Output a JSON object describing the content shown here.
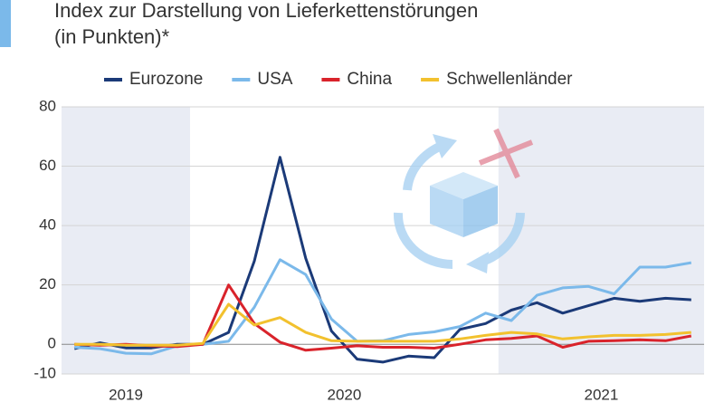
{
  "chart_data": {
    "type": "line",
    "title": "Index zur Darstellung von Lieferkettenstörungen",
    "subtitle": "(in Punkten)*",
    "categories": [
      null,
      null,
      null,
      null,
      null,
      null,
      null,
      null,
      null,
      null,
      null,
      null,
      null,
      null,
      null,
      null,
      null,
      null,
      null,
      null,
      null,
      null,
      null,
      null,
      null
    ],
    "year_bands": [
      {
        "label": "2019",
        "months": 5,
        "shaded": true
      },
      {
        "label": "2020",
        "months": 12,
        "shaded": false
      },
      {
        "label": "2021",
        "months": 8,
        "shaded": true
      }
    ],
    "series": [
      {
        "name": "Eurozone",
        "color": "#1b3a78",
        "values": [
          -1.5,
          0.5,
          -1.2,
          -1.2,
          0,
          0,
          4,
          28,
          63,
          29,
          4.5,
          -5,
          -6,
          -4,
          -4.5,
          5,
          7,
          11.5,
          14,
          10.5,
          13,
          15.5,
          14.5,
          15.5,
          15
        ]
      },
      {
        "name": "USA",
        "color": "#7bb9ea",
        "values": [
          -1,
          -1.5,
          -3,
          -3.2,
          -0.5,
          0,
          1,
          12.5,
          28.5,
          23.5,
          8.5,
          1,
          1.2,
          3.3,
          4.2,
          6,
          10.5,
          8,
          16.5,
          19,
          19.5,
          17,
          26,
          26,
          27.5
        ]
      },
      {
        "name": "China",
        "color": "#d9232b",
        "values": [
          0,
          -0.3,
          0,
          -0.5,
          -0.8,
          0,
          20,
          7,
          0.7,
          -2,
          -1.3,
          -0.5,
          -1,
          -1,
          -1.3,
          0,
          1.5,
          2,
          2.8,
          -1,
          1,
          1.2,
          1.5,
          1.2,
          2.8
        ]
      },
      {
        "name": "Schwellenländer",
        "color": "#f2c12e",
        "values": [
          0,
          0,
          -0.3,
          -0.3,
          -0.3,
          0.3,
          13.5,
          6.5,
          9,
          4,
          1.2,
          1,
          1,
          1,
          1,
          1.8,
          3,
          4,
          3.5,
          1.8,
          2.5,
          3,
          3,
          3.3,
          4
        ]
      }
    ],
    "ylim": [
      -10,
      80
    ],
    "yticks": [
      -10,
      0,
      20,
      40,
      60,
      80
    ],
    "grid": true
  }
}
